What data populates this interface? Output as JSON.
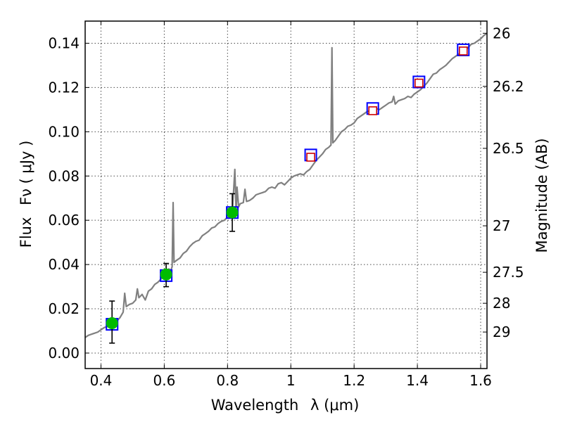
{
  "chart_data": {
    "type": "line",
    "title": "",
    "xlabel": "Wavelength",
    "xlabel_symbol": "λ (μm)",
    "ylabel": "Flux",
    "ylabel_symbol": "Fν  ( μJy )",
    "y2label": "Magnitude (AB)",
    "xlim": [
      0.35,
      1.62
    ],
    "ylim": [
      -0.007,
      0.15
    ],
    "grid": true,
    "legend": "none",
    "x_ticks": [
      0.4,
      0.6,
      0.8,
      1.0,
      1.2,
      1.4,
      1.6
    ],
    "x_tick_labels": [
      "0.4",
      "0.6",
      "0.8",
      "1",
      "1.2",
      "1.4",
      "1.6"
    ],
    "y_ticks": [
      0.0,
      0.02,
      0.04,
      0.06,
      0.08,
      0.1,
      0.12,
      0.14
    ],
    "y_tick_labels": [
      "0.00",
      "0.02",
      "0.04",
      "0.06",
      "0.08",
      "0.10",
      "0.12",
      "0.14"
    ],
    "y2_ticks": [
      {
        "flux": 0.1445,
        "label": "26"
      },
      {
        "flux": 0.1205,
        "label": "26.2"
      },
      {
        "flux": 0.0925,
        "label": "26.5"
      },
      {
        "flux": 0.0575,
        "label": "27"
      },
      {
        "flux": 0.0365,
        "label": "27.5"
      },
      {
        "flux": 0.0225,
        "label": "28"
      },
      {
        "flux": 0.0095,
        "label": "29"
      }
    ],
    "colors": {
      "spectrum": "#808080",
      "model_square": "#0000ff",
      "observed_point": "#00bb00",
      "nir_square": "#cc0000",
      "errorbar": "#000000"
    },
    "series": [
      {
        "kind": "spectrum",
        "points": [
          [
            0.35,
            0.007
          ],
          [
            0.36,
            0.008
          ],
          [
            0.37,
            0.0085
          ],
          [
            0.38,
            0.009
          ],
          [
            0.39,
            0.0095
          ],
          [
            0.4,
            0.0105
          ],
          [
            0.41,
            0.0115
          ],
          [
            0.42,
            0.012
          ],
          [
            0.43,
            0.0125
          ],
          [
            0.44,
            0.013
          ],
          [
            0.45,
            0.0145
          ],
          [
            0.46,
            0.016
          ],
          [
            0.47,
            0.0185
          ],
          [
            0.475,
            0.027
          ],
          [
            0.48,
            0.021
          ],
          [
            0.49,
            0.022
          ],
          [
            0.5,
            0.0225
          ],
          [
            0.51,
            0.024
          ],
          [
            0.515,
            0.029
          ],
          [
            0.52,
            0.025
          ],
          [
            0.53,
            0.0265
          ],
          [
            0.54,
            0.024
          ],
          [
            0.55,
            0.028
          ],
          [
            0.56,
            0.029
          ],
          [
            0.57,
            0.031
          ],
          [
            0.58,
            0.032
          ],
          [
            0.59,
            0.0335
          ],
          [
            0.6,
            0.035
          ],
          [
            0.61,
            0.0365
          ],
          [
            0.615,
            0.038
          ],
          [
            0.62,
            0.037
          ],
          [
            0.625,
            0.039
          ],
          [
            0.628,
            0.068
          ],
          [
            0.631,
            0.041
          ],
          [
            0.64,
            0.042
          ],
          [
            0.65,
            0.043
          ],
          [
            0.66,
            0.045
          ],
          [
            0.67,
            0.046
          ],
          [
            0.68,
            0.048
          ],
          [
            0.69,
            0.0495
          ],
          [
            0.7,
            0.0505
          ],
          [
            0.71,
            0.051
          ],
          [
            0.72,
            0.053
          ],
          [
            0.73,
            0.054
          ],
          [
            0.74,
            0.055
          ],
          [
            0.75,
            0.0565
          ],
          [
            0.76,
            0.057
          ],
          [
            0.77,
            0.0585
          ],
          [
            0.78,
            0.0595
          ],
          [
            0.79,
            0.06
          ],
          [
            0.8,
            0.0615
          ],
          [
            0.81,
            0.062
          ],
          [
            0.815,
            0.063
          ],
          [
            0.823,
            0.083
          ],
          [
            0.827,
            0.064
          ],
          [
            0.83,
            0.075
          ],
          [
            0.835,
            0.066
          ],
          [
            0.84,
            0.0675
          ],
          [
            0.85,
            0.068
          ],
          [
            0.855,
            0.074
          ],
          [
            0.86,
            0.0685
          ],
          [
            0.87,
            0.069
          ],
          [
            0.88,
            0.07
          ],
          [
            0.89,
            0.0715
          ],
          [
            0.9,
            0.072
          ],
          [
            0.91,
            0.0725
          ],
          [
            0.92,
            0.073
          ],
          [
            0.93,
            0.0745
          ],
          [
            0.94,
            0.075
          ],
          [
            0.95,
            0.0745
          ],
          [
            0.96,
            0.0765
          ],
          [
            0.97,
            0.077
          ],
          [
            0.98,
            0.076
          ],
          [
            0.99,
            0.0775
          ],
          [
            1.0,
            0.079
          ],
          [
            1.01,
            0.08
          ],
          [
            1.02,
            0.0805
          ],
          [
            1.03,
            0.081
          ],
          [
            1.04,
            0.0805
          ],
          [
            1.05,
            0.082
          ],
          [
            1.06,
            0.083
          ],
          [
            1.07,
            0.085
          ],
          [
            1.08,
            0.087
          ],
          [
            1.09,
            0.0885
          ],
          [
            1.1,
            0.09
          ],
          [
            1.11,
            0.092
          ],
          [
            1.12,
            0.093
          ],
          [
            1.127,
            0.094
          ],
          [
            1.13,
            0.138
          ],
          [
            1.133,
            0.095
          ],
          [
            1.14,
            0.096
          ],
          [
            1.15,
            0.098
          ],
          [
            1.16,
            0.1
          ],
          [
            1.17,
            0.101
          ],
          [
            1.18,
            0.1025
          ],
          [
            1.19,
            0.103
          ],
          [
            1.2,
            0.104
          ],
          [
            1.21,
            0.106
          ],
          [
            1.22,
            0.107
          ],
          [
            1.23,
            0.108
          ],
          [
            1.24,
            0.109
          ],
          [
            1.25,
            0.1095
          ],
          [
            1.26,
            0.11
          ],
          [
            1.27,
            0.1105
          ],
          [
            1.28,
            0.11
          ],
          [
            1.29,
            0.111
          ],
          [
            1.3,
            0.112
          ],
          [
            1.31,
            0.113
          ],
          [
            1.32,
            0.1135
          ],
          [
            1.325,
            0.116
          ],
          [
            1.33,
            0.1125
          ],
          [
            1.34,
            0.114
          ],
          [
            1.35,
            0.1145
          ],
          [
            1.36,
            0.115
          ],
          [
            1.37,
            0.116
          ],
          [
            1.38,
            0.1155
          ],
          [
            1.39,
            0.117
          ],
          [
            1.4,
            0.118
          ],
          [
            1.41,
            0.119
          ],
          [
            1.42,
            0.1205
          ],
          [
            1.43,
            0.122
          ],
          [
            1.44,
            0.124
          ],
          [
            1.45,
            0.126
          ],
          [
            1.46,
            0.1265
          ],
          [
            1.47,
            0.128
          ],
          [
            1.48,
            0.129
          ],
          [
            1.49,
            0.13
          ],
          [
            1.5,
            0.1315
          ],
          [
            1.51,
            0.133
          ],
          [
            1.52,
            0.134
          ],
          [
            1.53,
            0.135
          ],
          [
            1.54,
            0.136
          ],
          [
            1.55,
            0.137
          ],
          [
            1.56,
            0.138
          ],
          [
            1.57,
            0.1395
          ],
          [
            1.58,
            0.14
          ],
          [
            1.59,
            0.141
          ],
          [
            1.6,
            0.142
          ],
          [
            1.61,
            0.1435
          ],
          [
            1.62,
            0.1445
          ]
        ]
      },
      {
        "kind": "model-photometry",
        "x": [
          0.435,
          0.606,
          0.815,
          1.063,
          1.259,
          1.405,
          1.545
        ],
        "y": [
          0.013,
          0.035,
          0.0635,
          0.0895,
          0.1105,
          0.1225,
          0.137
        ]
      },
      {
        "kind": "observed-photometry",
        "x": [
          0.435,
          0.606,
          0.815
        ],
        "y": [
          0.0135,
          0.0355,
          0.0635
        ],
        "err_low": [
          0.009,
          0.0055,
          0.0085
        ],
        "err_high": [
          0.01,
          0.005,
          0.0085
        ]
      },
      {
        "kind": "nir-photometry",
        "x": [
          1.063,
          1.259,
          1.405,
          1.545
        ],
        "y": [
          0.0885,
          0.1095,
          0.122,
          0.1365
        ]
      }
    ]
  }
}
